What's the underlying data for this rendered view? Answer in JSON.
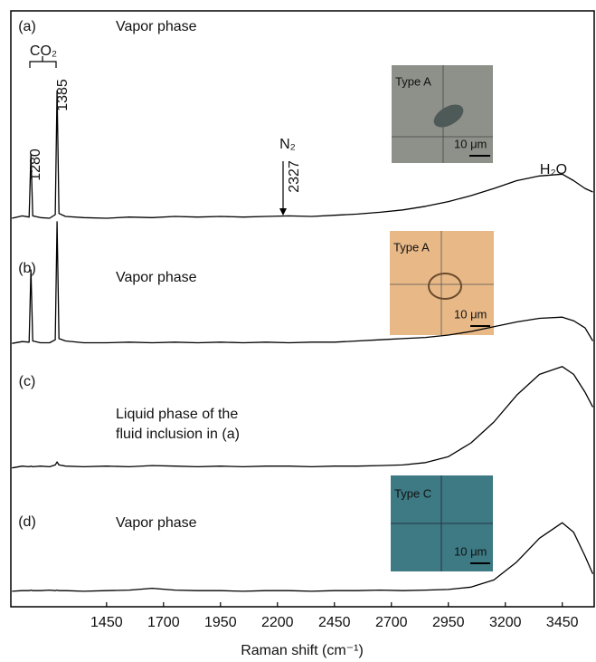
{
  "chart_data": {
    "type": "line",
    "x_label": "Raman shift (cm⁻¹)",
    "x": [
      1035,
      1080,
      1110,
      1118,
      1126,
      1160,
      1200,
      1225,
      1233,
      1241,
      1270,
      1350,
      1450,
      1550,
      1650,
      1750,
      1850,
      1950,
      2050,
      2150,
      2250,
      2350,
      2450,
      2550,
      2650,
      2750,
      2850,
      2950,
      3050,
      3150,
      3250,
      3350,
      3450,
      3500,
      3550,
      3584
    ],
    "xlim": [
      1030,
      3590
    ],
    "xticks": [
      1450,
      1700,
      1950,
      2200,
      2450,
      2700,
      2950,
      3200,
      3450
    ],
    "ylim": [
      0,
      100
    ],
    "series": [
      {
        "name": "(a)",
        "color": "#000000",
        "values": [
          65.2,
          65.6,
          65.4,
          76,
          65.6,
          65.3,
          65.2,
          65.8,
          86.6,
          66,
          65.5,
          65.3,
          65.2,
          65.4,
          65.3,
          65.5,
          65.4,
          65.5,
          65.4,
          65.5,
          65.6,
          65.5,
          65.7,
          65.9,
          66.2,
          66.6,
          67.2,
          68.0,
          69.0,
          70.2,
          71.5,
          72.3,
          72.6,
          71.5,
          70.2,
          69.6
        ]
      },
      {
        "name": "(b)",
        "color": "#000000",
        "values": [
          44.2,
          44.5,
          44.4,
          56.5,
          44.6,
          44.3,
          44.3,
          44.8,
          64.6,
          45,
          44.6,
          44.3,
          44.3,
          44.4,
          44.3,
          44.4,
          44.3,
          44.4,
          44.3,
          44.4,
          44.3,
          44.4,
          44.4,
          44.6,
          44.8,
          45.0,
          45.2,
          45.6,
          46.2,
          47.0,
          47.8,
          48.4,
          48.6,
          48.0,
          46.8,
          44.6
        ]
      },
      {
        "name": "(c)",
        "color": "#000000",
        "values": [
          23.3,
          23.6,
          23.5,
          23.6,
          23.5,
          23.6,
          23.5,
          23.8,
          24.3,
          23.8,
          23.6,
          23.5,
          23.6,
          23.5,
          23.7,
          23.6,
          23.5,
          23.6,
          23.5,
          23.6,
          23.6,
          23.5,
          23.6,
          23.6,
          23.7,
          23.8,
          24.2,
          25.2,
          27.5,
          31,
          35.5,
          39,
          40.3,
          39,
          36,
          33.5
        ]
      },
      {
        "name": "(d)",
        "color": "#000000",
        "values": [
          2.6,
          2.7,
          2.7,
          2.8,
          2.7,
          2.7,
          2.8,
          2.7,
          2.8,
          2.7,
          2.7,
          2.6,
          2.7,
          2.8,
          3.1,
          2.8,
          2.7,
          2.7,
          2.6,
          2.7,
          2.7,
          2.6,
          2.7,
          2.7,
          2.8,
          2.7,
          2.8,
          2.9,
          3.3,
          4.5,
          7.5,
          11.5,
          14.1,
          12.5,
          8.5,
          5.5
        ]
      }
    ],
    "annotations": [
      "(a)",
      "Vapor phase",
      "CO₂",
      "1280",
      "1385",
      "N₂",
      "2327",
      "H₂O",
      "(b)",
      "Vapor phase",
      "(c)",
      "Liquid phase of the",
      "fluid inclusion in (a)",
      "(d)",
      "Vapor phase"
    ],
    "insets": [
      {
        "label": "Type A",
        "scale": "10 μm"
      },
      {
        "label": "Type A",
        "scale": "10 μm"
      },
      {
        "label": "Type C",
        "scale": "10 μm"
      }
    ]
  }
}
